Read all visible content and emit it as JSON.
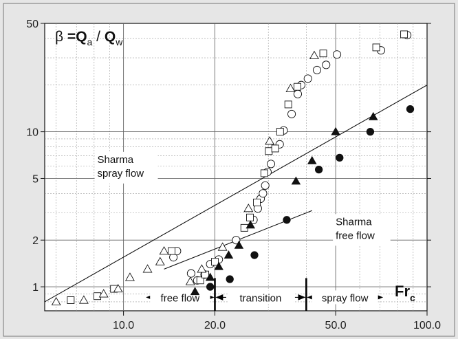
{
  "chart_data": {
    "type": "scatter",
    "title": "",
    "ylabel_parts": [
      "β",
      "=",
      "Q",
      "a",
      "/",
      "Q",
      "w"
    ],
    "xlabel_parts": [
      "Fr",
      "c"
    ],
    "x_scale": "log",
    "y_scale": "log",
    "xlim": [
      5.5,
      100
    ],
    "ylim": [
      0.7,
      50
    ],
    "x_ticks": [
      {
        "value": 10,
        "label": "10.0"
      },
      {
        "value": 20,
        "label": "20.0"
      },
      {
        "value": 50,
        "label": "50.0"
      },
      {
        "value": 100,
        "label": "100.0"
      }
    ],
    "y_ticks": [
      {
        "value": 1,
        "label": "1"
      },
      {
        "value": 2,
        "label": "2"
      },
      {
        "value": 5,
        "label": "5"
      },
      {
        "value": 10,
        "label": "10"
      },
      {
        "value": 50,
        "label": "50"
      }
    ],
    "grid": true,
    "series": [
      {
        "marker": "open-circle",
        "points": [
          [
            16.7,
            1.22
          ],
          [
            17.5,
            1.1
          ],
          [
            18.5,
            1.2
          ],
          [
            19.3,
            1.4
          ],
          [
            20.6,
            1.5
          ],
          [
            23.5,
            2.0
          ],
          [
            26.8,
            2.7
          ],
          [
            27.7,
            3.2
          ],
          [
            28.3,
            3.7
          ],
          [
            28.8,
            4.0
          ],
          [
            29.3,
            4.5
          ],
          [
            29.8,
            5.5
          ],
          [
            30.6,
            6.2
          ],
          [
            32.7,
            8.3
          ],
          [
            33.7,
            10.2
          ],
          [
            35.8,
            13.0
          ],
          [
            37.5,
            17.5
          ],
          [
            38.5,
            20.0
          ],
          [
            40.5,
            22.0
          ],
          [
            43.4,
            25.0
          ],
          [
            46.5,
            27.0
          ],
          [
            50.5,
            31.5
          ],
          [
            70.5,
            33.5
          ],
          [
            86.0,
            42.0
          ],
          [
            14.6,
            1.55
          ],
          [
            15.0,
            1.7
          ]
        ]
      },
      {
        "marker": "open-square",
        "points": [
          [
            6.7,
            0.82
          ],
          [
            8.2,
            0.87
          ],
          [
            9.3,
            0.97
          ],
          [
            14.4,
            1.7
          ],
          [
            17.9,
            1.1
          ],
          [
            18.6,
            1.2
          ],
          [
            20.0,
            1.45
          ],
          [
            25.0,
            2.4
          ],
          [
            26.1,
            2.8
          ],
          [
            27.5,
            3.5
          ],
          [
            29.1,
            5.4
          ],
          [
            30.1,
            7.5
          ],
          [
            31.6,
            7.8
          ],
          [
            32.8,
            10.0
          ],
          [
            34.9,
            15.0
          ],
          [
            37.4,
            19.5
          ],
          [
            45.5,
            32.0
          ],
          [
            68.0,
            35.0
          ],
          [
            84.0,
            42.5
          ]
        ]
      },
      {
        "marker": "open-triangle",
        "points": [
          [
            6.0,
            0.8
          ],
          [
            7.4,
            0.82
          ],
          [
            8.6,
            0.9
          ],
          [
            9.6,
            0.97
          ],
          [
            10.5,
            1.15
          ],
          [
            12.0,
            1.3
          ],
          [
            13.2,
            1.45
          ],
          [
            13.6,
            1.7
          ],
          [
            16.6,
            1.08
          ],
          [
            18.1,
            1.3
          ],
          [
            21.2,
            1.8
          ],
          [
            25.8,
            3.2
          ],
          [
            30.3,
            8.7
          ],
          [
            35.5,
            19.0
          ],
          [
            42.5,
            31.0
          ]
        ]
      },
      {
        "marker": "filled-triangle",
        "points": [
          [
            17.2,
            0.93
          ],
          [
            19.3,
            1.15
          ],
          [
            20.6,
            1.35
          ],
          [
            22.2,
            1.6
          ],
          [
            24.0,
            1.85
          ],
          [
            26.2,
            2.5
          ],
          [
            37.0,
            4.8
          ],
          [
            41.8,
            6.5
          ],
          [
            50.0,
            10.0
          ],
          [
            66.5,
            12.5
          ]
        ]
      },
      {
        "marker": "filled-circle",
        "points": [
          [
            19.3,
            1.0
          ],
          [
            22.4,
            1.12
          ],
          [
            27.0,
            1.6
          ],
          [
            34.5,
            2.7
          ],
          [
            44.0,
            5.7
          ],
          [
            51.5,
            6.8
          ],
          [
            65.0,
            10.0
          ],
          [
            88.0,
            14.0
          ]
        ]
      }
    ],
    "reference_lines": [
      {
        "name": "Sharma spray flow",
        "from": [
          5.5,
          0.8
        ],
        "to": [
          100,
          20
        ]
      },
      {
        "name": "Sharma free flow",
        "from": [
          13.6,
          1.3
        ],
        "to": [
          41.8,
          3.1
        ]
      }
    ],
    "annotations": [
      {
        "text": [
          "Sharma",
          "spray flow"
        ],
        "x": 8.2,
        "y": 6.3
      },
      {
        "text": [
          "Sharma",
          "free flow"
        ],
        "x": 50.0,
        "y": 2.5
      }
    ],
    "regimes": [
      {
        "label": "free flow",
        "from": 11.8,
        "to": 20
      },
      {
        "label": "transition",
        "from": 20,
        "to": 40
      },
      {
        "label": "spray flow",
        "from": 40,
        "to": 72
      }
    ],
    "regime_y": 0.855,
    "regime_boundaries": [
      20,
      40
    ]
  }
}
